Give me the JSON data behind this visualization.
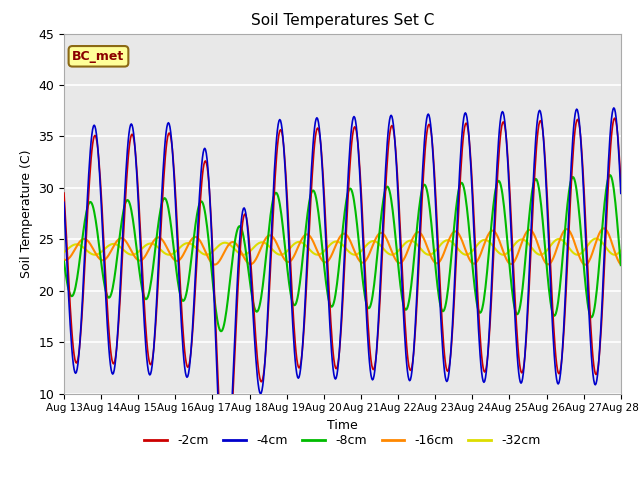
{
  "title": "Soil Temperatures Set C",
  "xlabel": "Time",
  "ylabel": "Soil Temperature (C)",
  "annotation": "BC_met",
  "ylim": [
    10,
    45
  ],
  "bg_color": "#e8e8e8",
  "line_colors": {
    "-2cm": "#cc0000",
    "-4cm": "#0000cc",
    "-8cm": "#00bb00",
    "-16cm": "#ff8800",
    "-32cm": "#dddd00"
  },
  "tick_labels": [
    "Aug 13",
    "Aug 14",
    "Aug 15",
    "Aug 16",
    "Aug 17",
    "Aug 18",
    "Aug 19",
    "Aug 20",
    "Aug 21",
    "Aug 22",
    "Aug 23",
    "Aug 24",
    "Aug 25",
    "Aug 26",
    "Aug 27",
    "Aug 28"
  ],
  "yticks": [
    10,
    15,
    20,
    25,
    30,
    35,
    40,
    45
  ],
  "legend_labels": [
    "-2cm",
    "-4cm",
    "-8cm",
    "-16cm",
    "-32cm"
  ]
}
